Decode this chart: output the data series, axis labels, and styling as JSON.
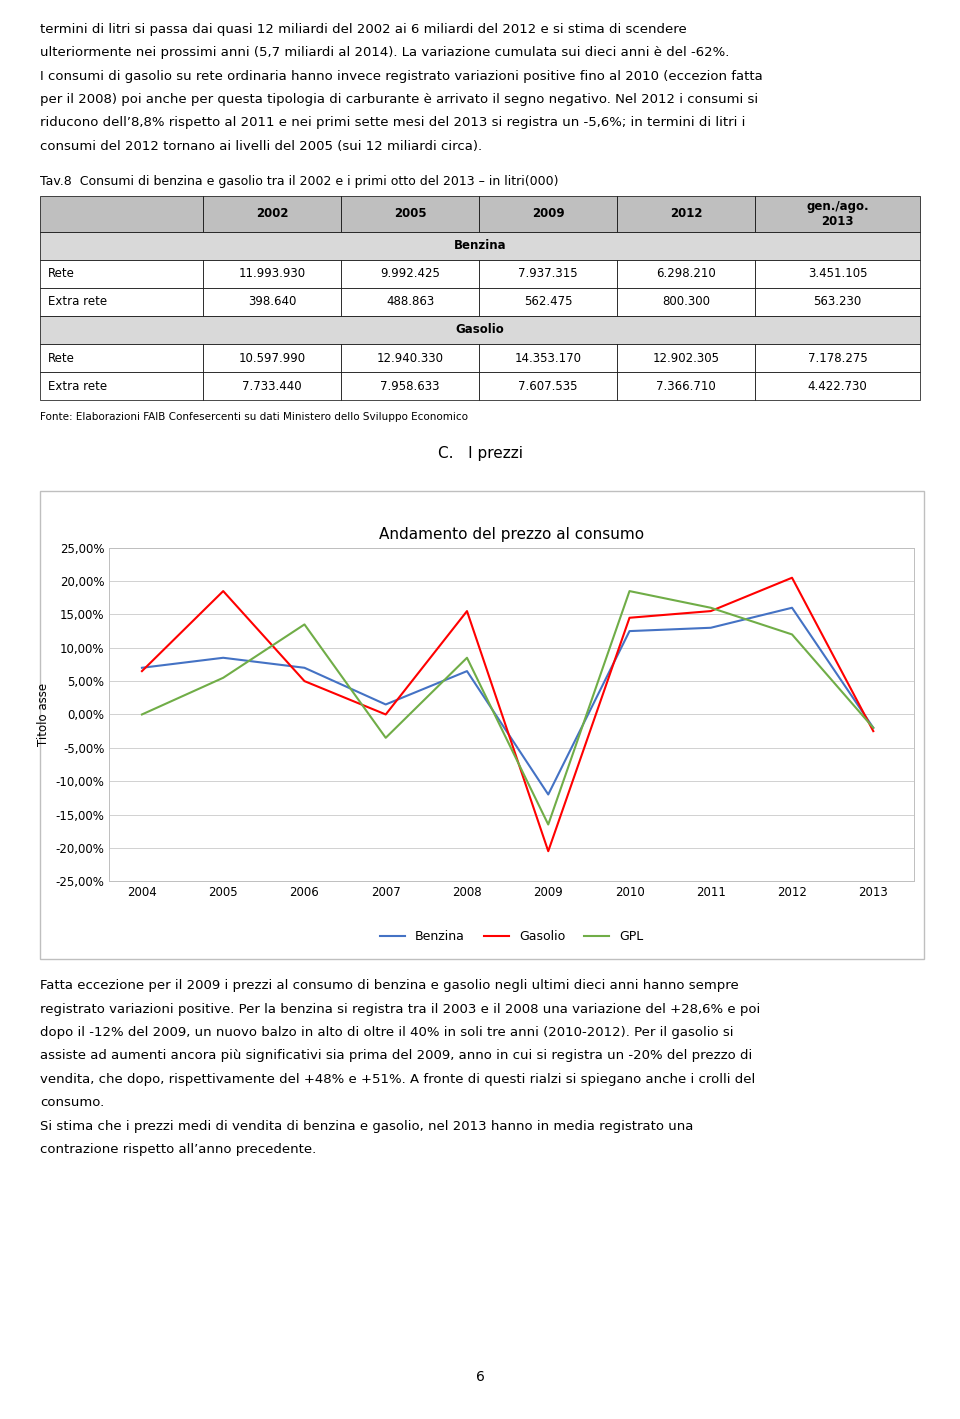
{
  "page_text_top": [
    "termini di litri si passa dai quasi 12 miliardi del 2002 ai 6 miliardi del 2012 e si stima di scendere",
    "ulteriormente nei prossimi anni (5,7 miliardi al 2014). La variazione cumulata sui dieci anni è del -62%.",
    "I consumi di gasolio su rete ordinaria hanno invece registrato variazioni positive fino al 2010 (eccezion fatta",
    "per il 2008) poi anche per questa tipologia di carburante è arrivato il segno negativo. Nel 2012 i consumi si",
    "riducono dell’8,8% rispetto al 2011 e nei primi sette mesi del 2013 si registra un -5,6%; in termini di litri i",
    "consumi del 2012 tornano ai livelli del 2005 (sui 12 miliardi circa)."
  ],
  "table_title": "Tav.8  Consumi di benzina e gasolio tra il 2002 e i primi otto del 2013 – in litri(000)",
  "table_headers": [
    "",
    "2002",
    "2005",
    "2009",
    "2012",
    "gen./ago.\n2013"
  ],
  "table_section_benzina": "Benzina",
  "table_section_gasolio": "Gasolio",
  "table_rows": [
    [
      "Rete",
      "11.993.930",
      "9.992.425",
      "7.937.315",
      "6.298.210",
      "3.451.105"
    ],
    [
      "Extra rete",
      "398.640",
      "488.863",
      "562.475",
      "800.300",
      "563.230"
    ],
    [
      "Rete",
      "10.597.990",
      "12.940.330",
      "14.353.170",
      "12.902.305",
      "7.178.275"
    ],
    [
      "Extra rete",
      "7.733.440",
      "7.958.633",
      "7.607.535",
      "7.366.710",
      "4.422.730"
    ]
  ],
  "table_source": "Fonte: Elaborazioni FAIB Confesercenti su dati Ministero dello Sviluppo Economico",
  "chart_section_label": "C.   I prezzi",
  "chart_title": "Andamento del prezzo al consumo",
  "chart_ylabel": "Titolo asse",
  "chart_years": [
    2004,
    2005,
    2006,
    2007,
    2008,
    2009,
    2010,
    2011,
    2012,
    2013
  ],
  "benzina": [
    0.07,
    0.085,
    0.07,
    0.015,
    0.065,
    -0.12,
    0.125,
    0.13,
    0.16,
    -0.02
  ],
  "gasolio": [
    0.065,
    0.185,
    0.05,
    0.0,
    0.155,
    -0.205,
    0.145,
    0.155,
    0.205,
    -0.025
  ],
  "gpl": [
    0.0,
    0.055,
    0.135,
    -0.035,
    0.085,
    -0.165,
    0.185,
    0.16,
    0.12,
    -0.02
  ],
  "benzina_color": "#4472C4",
  "gasolio_color": "#FF0000",
  "gpl_color": "#70AD47",
  "ylim": [
    -0.25,
    0.25
  ],
  "yticks": [
    -0.25,
    -0.2,
    -0.15,
    -0.1,
    -0.05,
    0.0,
    0.05,
    0.1,
    0.15,
    0.2,
    0.25
  ],
  "page_text_bottom_p1": [
    "Fatta eccezione per il 2009 i prezzi al consumo di benzina e gasolio negli ultimi dieci anni hanno sempre",
    "registrato variazioni positive. Per la benzina si registra tra il 2003 e il 2008 una variazione del +28,6% e poi",
    "dopo il -12% del 2009, un nuovo balzo in alto di oltre il 40% in soli tre anni (2010-2012). Per il gasolio si",
    "assiste ad aumenti ancora più significativi sia prima del 2009, anno in cui si registra un -20% del prezzo di",
    "vendita, che dopo, rispettivamente del +48% e +51%. A fronte di questi rialzi si spiegano anche i crolli del",
    "consumo."
  ],
  "page_text_bottom_p2": [
    "Si stima che i prezzi medi di vendita di benzina e gasolio, nel 2013 hanno in media registrato una",
    "contrazione rispetto all’anno precedente."
  ],
  "page_number": "6",
  "header_bg": "#BFBFBF",
  "section_bg": "#D9D9D9"
}
